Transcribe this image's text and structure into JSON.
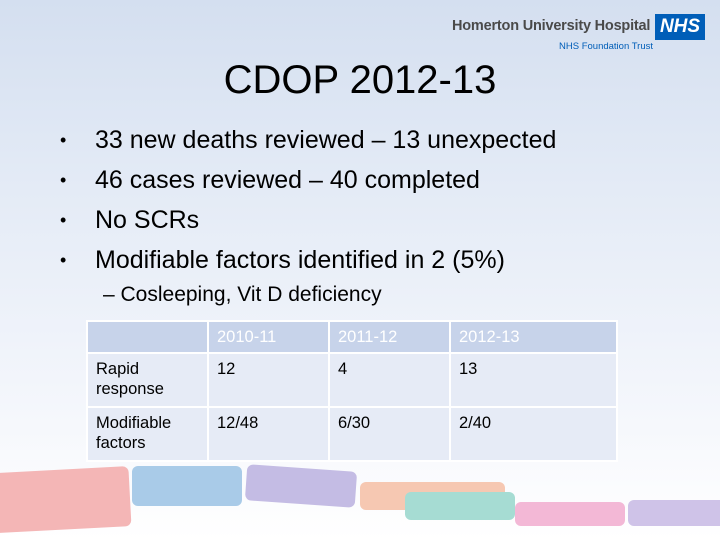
{
  "logo": {
    "name": "Homerton University Hospital",
    "badge": "NHS",
    "subtitle": "NHS Foundation Trust"
  },
  "title": "CDOP 2012-13",
  "bullets": [
    "33 new deaths reviewed – 13 unexpected",
    "46 cases reviewed – 40 completed",
    "No SCRs",
    "Modifiable factors identified in 2 (5%)"
  ],
  "bullet_glyph": "•",
  "subbullet": "– Cosleeping, Vit D deficiency",
  "table": {
    "headers": [
      "",
      "2010-11",
      "2011-12",
      "2012-13"
    ],
    "rows": [
      [
        "Rapid response",
        "12",
        "4",
        "13"
      ],
      [
        "Modifiable factors",
        "12/48",
        "6/30",
        "2/40"
      ]
    ]
  },
  "colors": {
    "nhs_blue": "#005eb8",
    "band_colors": [
      "#f4b6b6",
      "#a9cbe8",
      "#c4bce4",
      "#f6c8b2",
      "#a6dcd3",
      "#f3b8d6",
      "#cfc3e8"
    ]
  }
}
